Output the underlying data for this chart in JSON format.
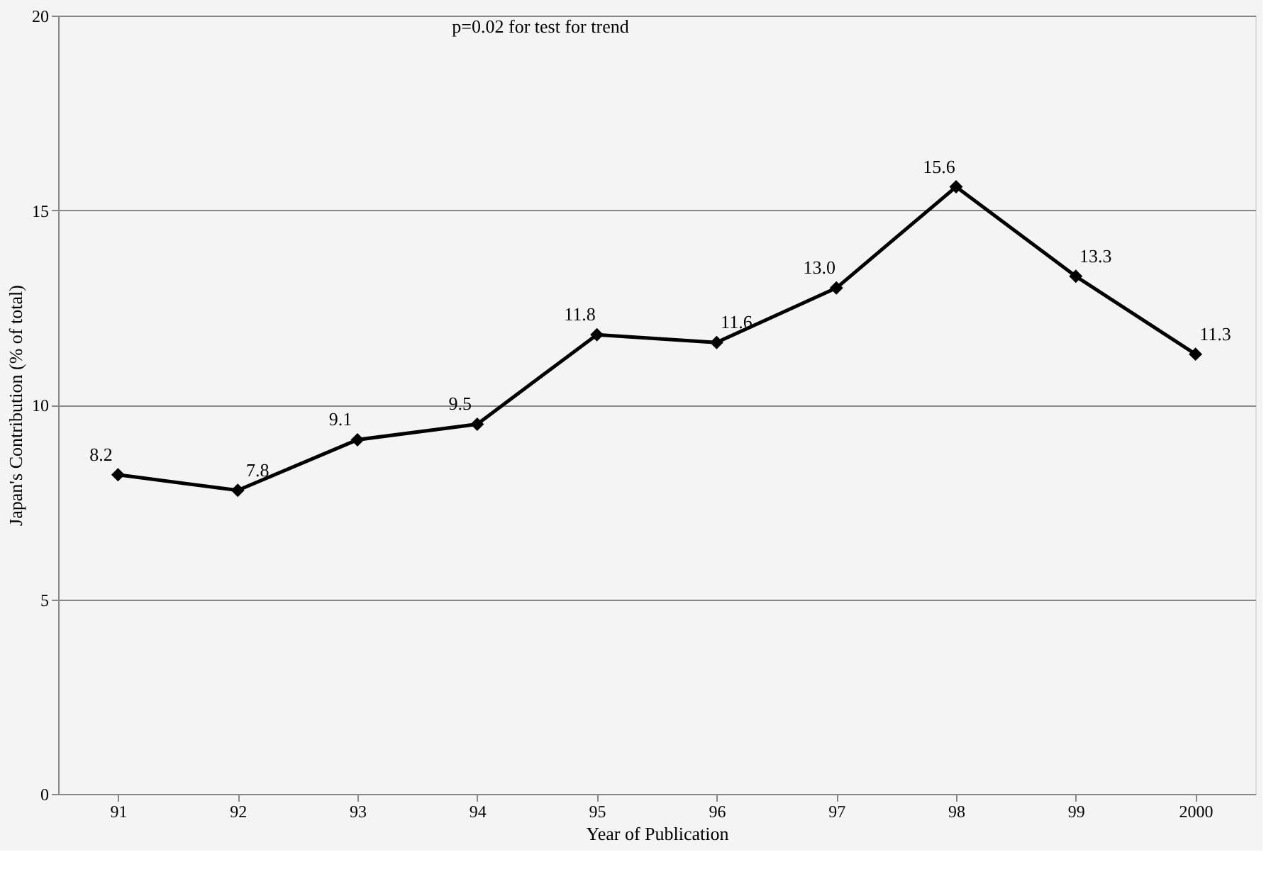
{
  "chart_data": {
    "type": "line",
    "categories": [
      "91",
      "92",
      "93",
      "94",
      "95",
      "96",
      "97",
      "98",
      "99",
      "2000"
    ],
    "series": [
      {
        "color": "#000000",
        "values": [
          8.2,
          7.8,
          9.1,
          9.5,
          11.8,
          11.6,
          13.0,
          15.6,
          13.3,
          11.3
        ],
        "value_labels": [
          "8.2",
          "7.8",
          "9.1",
          "9.5",
          "11.8",
          "11.6",
          "13.0",
          "15.6",
          "13.3",
          "11.3"
        ]
      }
    ],
    "xlabel": "Year of Publication",
    "ylabel": "Japan's Contribution (% of total)",
    "annotations": [
      "p=0.02 for test for trend"
    ],
    "ylim": [
      0,
      20
    ],
    "yticks": [
      0,
      5,
      10,
      15,
      20
    ],
    "grid": "y",
    "marker": "diamond",
    "line_style": "solid"
  }
}
